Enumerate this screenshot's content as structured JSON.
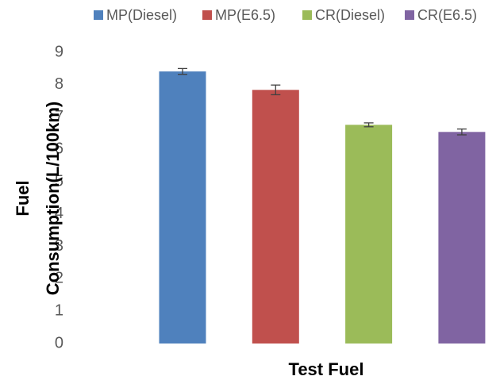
{
  "chart_data": {
    "type": "bar",
    "x_label": "Test Fuel",
    "y_label": "Fuel Consumption(L/100km)",
    "categories": [
      null
    ],
    "series": [
      {
        "name": "MP(Diesel)",
        "color": "#4f81bd",
        "values": [
          8.41
        ],
        "errors": [
          0.09
        ]
      },
      {
        "name": "MP(E6.5)",
        "color": "#c0504d",
        "values": [
          7.84
        ],
        "errors": [
          0.15
        ]
      },
      {
        "name": "CR(Diesel)",
        "color": "#9bbb59",
        "values": [
          6.76
        ],
        "errors": [
          0.06
        ]
      },
      {
        "name": "CR(E6.5)",
        "color": "#8064a2",
        "values": [
          6.54
        ],
        "errors": [
          0.09
        ]
      }
    ],
    "ylim": [
      0,
      9
    ],
    "yticks": [
      0,
      1,
      2,
      3,
      4,
      5,
      6,
      7,
      8,
      9
    ],
    "grid": false,
    "legend": "top"
  }
}
